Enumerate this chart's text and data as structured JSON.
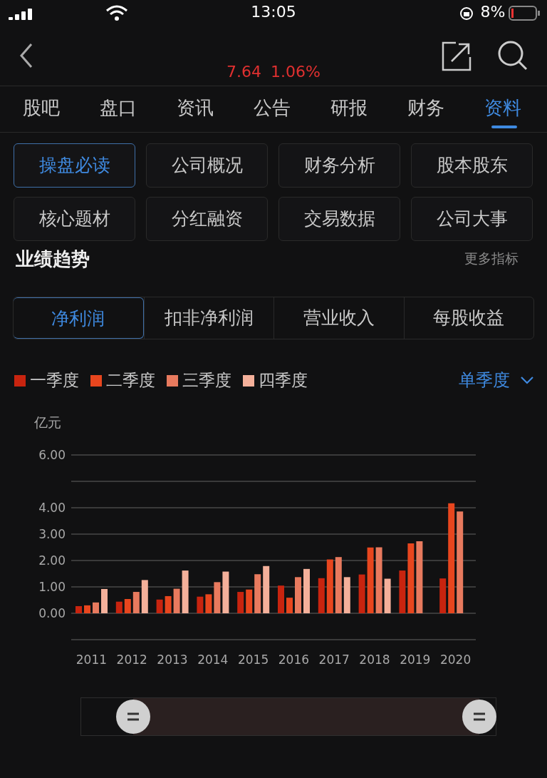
{
  "chart_data": {
    "type": "bar",
    "title": "业绩趋势",
    "ylabel": "亿元",
    "categories": [
      "2011",
      "2012",
      "2013",
      "2014",
      "2015",
      "2016",
      "2017",
      "2018",
      "2019",
      "2020"
    ],
    "series": [
      {
        "name": "一季度",
        "color": "#c8240f",
        "values": [
          0.27,
          0.44,
          0.52,
          0.63,
          0.81,
          1.05,
          1.33,
          1.47,
          1.62,
          1.32
        ]
      },
      {
        "name": "二季度",
        "color": "#e8461e",
        "values": [
          0.3,
          0.54,
          0.65,
          0.72,
          0.9,
          0.59,
          2.04,
          2.49,
          2.65,
          4.17
        ]
      },
      {
        "name": "三季度",
        "color": "#e87a5e",
        "values": [
          0.41,
          0.81,
          0.93,
          1.18,
          1.48,
          1.37,
          2.13,
          2.5,
          2.73,
          3.86
        ]
      },
      {
        "name": "四季度",
        "color": "#f4b09a",
        "values": [
          0.92,
          1.26,
          1.62,
          1.58,
          1.79,
          1.68,
          1.37,
          1.31,
          0.0,
          null
        ]
      }
    ],
    "ylim": [
      -1,
      6
    ],
    "yticks": [
      {
        "value": -1,
        "label": null
      },
      {
        "value": 0,
        "label": "0.00"
      },
      {
        "value": 1,
        "label": "1.00"
      },
      {
        "value": 2,
        "label": "2.00"
      },
      {
        "value": 3,
        "label": "3.00"
      },
      {
        "value": 4,
        "label": "4.00"
      },
      {
        "value": 5,
        "label": null
      },
      {
        "value": 6,
        "label": "6.00"
      }
    ],
    "grid": "y",
    "legend": "top left",
    "annotations": [
      "13:05",
      "8%",
      "7.64",
      "1.06%",
      "股吧",
      "盘口",
      "资讯",
      "公告",
      "研报",
      "财务",
      "资料",
      "操盘必读",
      "公司概况",
      "财务分析",
      "股本股东",
      "核心题材",
      "分红融资",
      "交易数据",
      "公司大事",
      "更多指标",
      "净利润",
      "扣非净利润",
      "营业收入",
      "每股收益",
      "单季度"
    ]
  }
}
